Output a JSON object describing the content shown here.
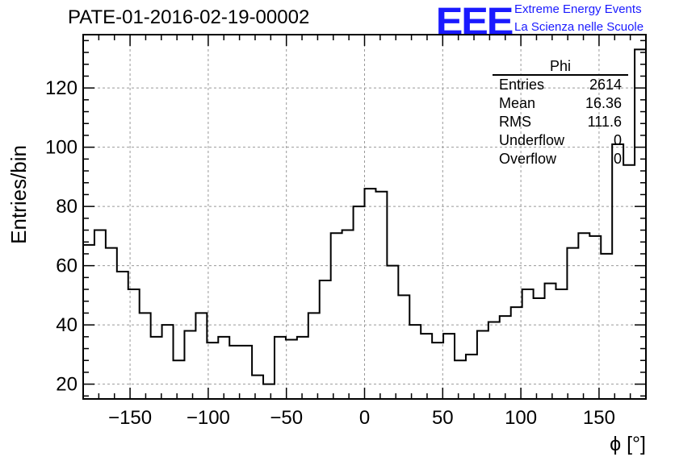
{
  "title": "PATE-01-2016-02-19-00002",
  "logo": {
    "text": "EEE",
    "line1": "Extreme Energy Events",
    "line2": "La Scienza nelle Scuole"
  },
  "stats": {
    "name": "Phi",
    "rows": [
      {
        "label": "Entries",
        "value": "2614"
      },
      {
        "label": "Mean",
        "value": "16.36"
      },
      {
        "label": "RMS",
        "value": "111.6"
      },
      {
        "label": "Underflow",
        "value": "0"
      },
      {
        "label": "Overflow",
        "value": "0"
      }
    ]
  },
  "colors": {
    "line": "#000000",
    "grid": "#999999",
    "brand": "#1a1aff"
  },
  "chart_data": {
    "type": "histogram",
    "title": "PATE-01-2016-02-19-00002",
    "xlabel": "ϕ [°]",
    "ylabel": "Entries/bin",
    "xlim": [
      -180,
      180
    ],
    "ylim": [
      15,
      138
    ],
    "bin_width": 7.2,
    "x_ticks": [
      -150,
      -100,
      -50,
      0,
      50,
      100,
      150
    ],
    "x_tick_labels": [
      "−150",
      "−100",
      "−50",
      "0",
      "50",
      "100",
      "150"
    ],
    "y_ticks": [
      20,
      40,
      60,
      80,
      100,
      120
    ],
    "grid": true,
    "values": [
      67,
      72,
      66,
      58,
      52,
      44,
      36,
      40,
      28,
      38,
      44,
      34,
      36,
      33,
      33,
      23,
      20,
      36,
      35,
      36,
      44,
      55,
      71,
      72,
      80,
      86,
      85,
      60,
      50,
      40,
      37,
      34,
      37,
      28,
      30,
      38,
      41,
      43,
      46,
      52,
      49,
      54,
      52,
      66,
      71,
      70,
      64,
      101,
      94,
      133
    ]
  }
}
